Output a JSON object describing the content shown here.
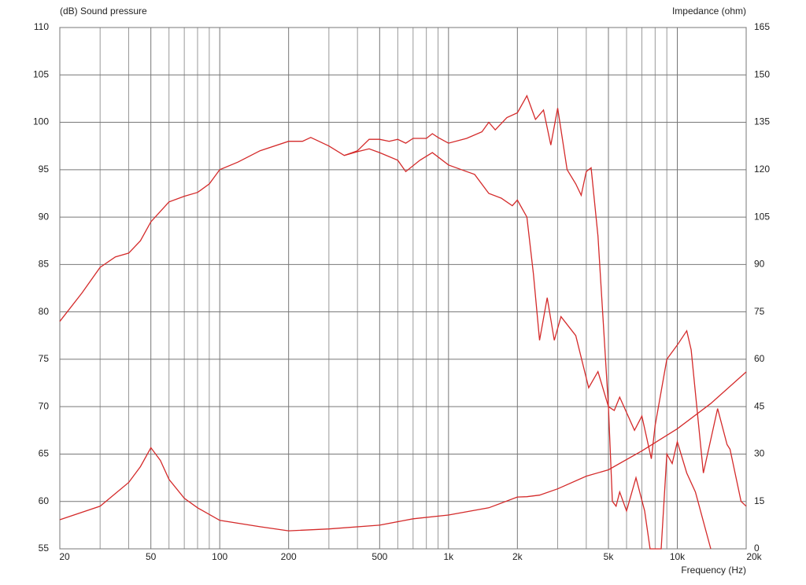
{
  "chart_data": {
    "type": "line",
    "ylabel": "(dB)  Sound pressure",
    "y2label": "Impedance  (ohm)",
    "xlabel": "Frequency  (Hz)",
    "xscale": "log",
    "grid": true,
    "xlim": [
      20,
      20000
    ],
    "ylim": [
      55,
      110
    ],
    "y2lim": [
      0,
      165
    ],
    "xticks": [
      20,
      50,
      100,
      200,
      500,
      {
        "value": 1000,
        "label": "1k"
      },
      {
        "value": 2000,
        "label": "2k"
      },
      {
        "value": 5000,
        "label": "5k"
      },
      {
        "value": 10000,
        "label": "10k"
      },
      {
        "value": 20000,
        "label": "20k"
      }
    ],
    "xminorticks": [
      30,
      40,
      60,
      70,
      80,
      90,
      300,
      400,
      600,
      700,
      800,
      900,
      3000,
      4000,
      6000,
      7000,
      8000,
      9000
    ],
    "yticks": [
      55,
      60,
      65,
      70,
      75,
      80,
      85,
      90,
      95,
      100,
      105,
      110
    ],
    "y2ticks": [
      0,
      15,
      30,
      45,
      60,
      75,
      90,
      105,
      120,
      135,
      150,
      165
    ],
    "series": [
      {
        "color": "#d42a2a",
        "x": [
          20,
          25,
          30,
          35,
          40,
          45,
          50,
          60,
          70,
          80,
          90,
          100,
          120,
          150,
          200,
          230,
          250,
          300,
          350,
          400,
          450,
          500,
          550,
          600,
          650,
          700,
          800,
          850,
          900,
          1000,
          1200,
          1400,
          1500,
          1600,
          1800,
          2000,
          2200,
          2400,
          2600,
          2800,
          3000,
          3300,
          3600,
          3800,
          4000,
          4200,
          4500,
          5000,
          5200,
          5400,
          5600,
          6000,
          6600,
          7200,
          7600,
          8500,
          9000,
          9500,
          10000,
          11000,
          12000,
          14000
        ],
        "values": [
          79,
          82,
          84.7,
          85.8,
          86.2,
          87.5,
          89.5,
          91.6,
          92.2,
          92.6,
          93.5,
          95,
          95.8,
          97,
          98,
          98,
          98.4,
          97.5,
          96.5,
          97,
          98.2,
          98.2,
          98,
          98.2,
          97.8,
          98.3,
          98.3,
          98.8,
          98.4,
          97.8,
          98.3,
          99,
          100,
          99.2,
          100.5,
          101,
          102.8,
          100.3,
          101.3,
          97.6,
          101.5,
          95,
          93.5,
          92.3,
          94.8,
          95.2,
          88,
          70,
          60,
          59.5,
          61,
          59,
          62.5,
          59,
          55,
          55,
          65,
          64,
          66.3,
          63,
          61,
          55
        ]
      },
      {
        "color": "#d42a2a",
        "x": [
          350,
          400,
          450,
          500,
          600,
          650,
          750,
          850,
          1000,
          1200,
          1300,
          1500,
          1700,
          1900,
          2000,
          2200,
          2350,
          2500,
          2700,
          2900,
          3100,
          3600,
          4100,
          4500,
          5000,
          5300,
          5600,
          6500,
          7000,
          7700,
          8000,
          9000,
          10000,
          11000,
          11500,
          13000,
          15000,
          16500,
          17000,
          19000,
          20000
        ],
        "values": [
          96.5,
          96.9,
          97.2,
          96.8,
          96,
          94.8,
          96,
          96.8,
          95.5,
          94.8,
          94.5,
          92.5,
          92,
          91.2,
          91.8,
          90,
          84,
          77,
          81.5,
          77,
          79.5,
          77.5,
          72,
          73.7,
          70,
          69.6,
          71,
          67.5,
          69,
          64.5,
          68,
          75,
          76.5,
          78,
          76,
          63,
          69.8,
          66,
          65.5,
          60,
          59.5
        ]
      },
      {
        "color": "#d42a2a",
        "axis": "y2",
        "x": [
          20,
          30,
          40,
          45,
          50,
          55,
          60,
          70,
          80,
          100,
          150,
          200,
          300,
          500,
          700,
          1000,
          1500,
          2000,
          2200,
          2500,
          3000,
          4000,
          5000,
          7000,
          10000,
          14000,
          20000
        ],
        "values": [
          9.2,
          13.5,
          21,
          26,
          32,
          28,
          22,
          16,
          13,
          9,
          7,
          5.7,
          6.3,
          7.5,
          9.5,
          10.7,
          13,
          16.4,
          16.5,
          17,
          19,
          23,
          25,
          31,
          38,
          46,
          56
        ]
      }
    ]
  }
}
